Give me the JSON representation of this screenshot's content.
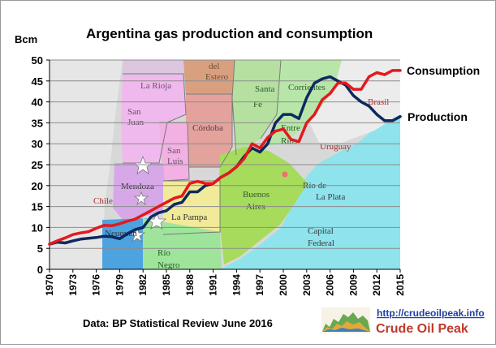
{
  "chart_data": {
    "type": "line",
    "title": "Argentina gas production and consumption",
    "ylabel": "Bcm",
    "xlabel": "",
    "ylim": [
      0,
      50
    ],
    "yticks": [
      0,
      5,
      10,
      15,
      20,
      25,
      30,
      35,
      40,
      45,
      50
    ],
    "xlim": [
      1970,
      2015
    ],
    "xticks": [
      1970,
      1973,
      1976,
      1979,
      1982,
      1985,
      1988,
      1991,
      1994,
      1997,
      2000,
      2003,
      2006,
      2009,
      2012,
      2015
    ],
    "grid": true,
    "legend": "direct labels at right end of lines",
    "x": [
      1970,
      1971,
      1972,
      1973,
      1974,
      1975,
      1976,
      1977,
      1978,
      1979,
      1980,
      1981,
      1982,
      1983,
      1984,
      1985,
      1986,
      1987,
      1988,
      1989,
      1990,
      1991,
      1992,
      1993,
      1994,
      1995,
      1996,
      1997,
      1998,
      1999,
      2000,
      2001,
      2002,
      2003,
      2004,
      2005,
      2006,
      2007,
      2008,
      2009,
      2010,
      2011,
      2012,
      2013,
      2014,
      2015
    ],
    "series": [
      {
        "name": "Consumption",
        "color": "#e3191c",
        "values": [
          6.0,
          6.8,
          7.5,
          8.3,
          8.7,
          9.0,
          9.8,
          10.5,
          10.4,
          10.9,
          11.5,
          12.0,
          13.0,
          14.0,
          15.0,
          16.0,
          17.0,
          17.5,
          20.5,
          21.0,
          20.5,
          20.5,
          22.0,
          23.0,
          24.5,
          26.5,
          30.0,
          29.0,
          31.5,
          33.0,
          33.5,
          31.0,
          30.5,
          35.0,
          37.0,
          40.5,
          42.0,
          44.5,
          44.5,
          43.0,
          43.0,
          46.0,
          47.0,
          46.5,
          47.5,
          47.5
        ]
      },
      {
        "name": "Production",
        "color": "#0d2a5e",
        "values": [
          6.0,
          6.5,
          6.3,
          6.8,
          7.2,
          7.4,
          7.6,
          7.9,
          7.8,
          7.3,
          8.5,
          9.5,
          10.0,
          12.5,
          13.5,
          14.0,
          15.5,
          16.0,
          18.5,
          18.5,
          20.0,
          20.5,
          22.0,
          23.0,
          24.5,
          27.0,
          29.0,
          28.0,
          30.0,
          35.0,
          37.0,
          37.0,
          36.0,
          41.0,
          44.5,
          45.5,
          46.0,
          45.0,
          44.0,
          41.5,
          40.0,
          39.0,
          37.0,
          35.5,
          35.5,
          36.5
        ]
      }
    ]
  },
  "source_text": "Data: BP Statistical Review June 2016",
  "logo": {
    "url": "http://crudeoilpeak.info",
    "name": "Crude Oil Peak"
  },
  "map_labels": [
    {
      "id": "la-rioja",
      "text": "La Rioja",
      "color": "#6a4f6a"
    },
    {
      "id": "san-juan",
      "text": "San Juan",
      "color": "#6a4f6a"
    },
    {
      "id": "san-luis",
      "text": "San Luis",
      "color": "#6a4f6a"
    },
    {
      "id": "mendoza",
      "text": "Mendoza",
      "color": "#333333"
    },
    {
      "id": "cordoba",
      "text": "Córdoba",
      "color": "#5a3a3a"
    },
    {
      "id": "del-estero",
      "text": "del Estero",
      "color": "#6a4f3a"
    },
    {
      "id": "santa-fe",
      "text": "Santa Fé",
      "color": "#2e5a2e"
    },
    {
      "id": "corrientes",
      "text": "Corrientes",
      "color": "#2e5a2e"
    },
    {
      "id": "entre-rios",
      "text": "Entre Ríos",
      "color": "#2e5a2e"
    },
    {
      "id": "brasil",
      "text": "Brasil",
      "color": "#a03030"
    },
    {
      "id": "uruguay",
      "text": "Uruguay",
      "color": "#a03030"
    },
    {
      "id": "rio-de-la-plata",
      "text": "Río de La Plata",
      "color": "#3a3a3a"
    },
    {
      "id": "buenos-aires",
      "text": "Buenos Aires",
      "color": "#2e5a2e"
    },
    {
      "id": "capital-federal",
      "text": "Capital Federal",
      "color": "#3a3a3a"
    },
    {
      "id": "la-pampa",
      "text": "La Pampa",
      "color": "#333333"
    },
    {
      "id": "neuquen",
      "text": "Neuquén",
      "color": "#333333"
    },
    {
      "id": "rio-negro",
      "text": "Río Negro",
      "color": "#2e5a2e"
    },
    {
      "id": "chile",
      "text": "Chile",
      "color": "#a03030"
    }
  ]
}
